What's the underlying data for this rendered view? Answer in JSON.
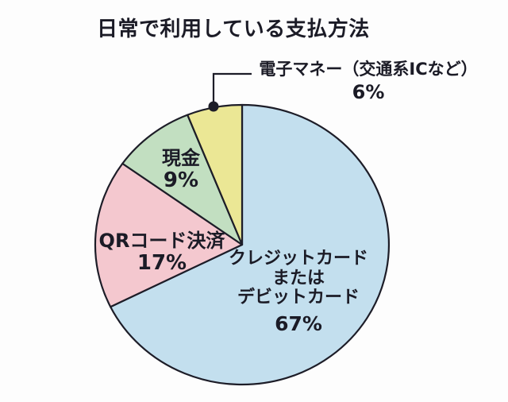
{
  "title": "日常で利用している支払方法",
  "colors": {
    "outline": "#1d1d28",
    "text": "#1b1b26",
    "background": "#fdfdfd"
  },
  "chart_data": {
    "type": "pie",
    "title": "日常で利用している支払方法",
    "unit": "%",
    "start_angle_deg": 0,
    "direction": "clockwise",
    "legend_position": "none",
    "total": 100,
    "slices": [
      {
        "label": "クレジットカードまたはデビットカード",
        "label_lines": [
          "クレジットカード",
          "または",
          "デビットカード"
        ],
        "value": 67,
        "pct_label": "67%",
        "color": "#c3dfee"
      },
      {
        "label": "QRコード決済",
        "value": 17,
        "pct_label": "17%",
        "color": "#f4c8cf"
      },
      {
        "label": "現金",
        "value": 9,
        "pct_label": "9%",
        "color": "#c2dfc1"
      },
      {
        "label": "電子マネー（交通系ICなど）",
        "value": 6,
        "pct_label": "6%",
        "color": "#ebe795",
        "callout": true
      }
    ]
  }
}
